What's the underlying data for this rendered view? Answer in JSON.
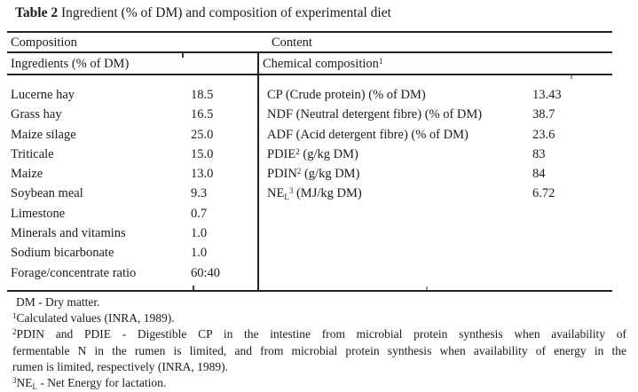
{
  "title": {
    "bold": "Table 2",
    "rest": " Ingredient (% of DM) and composition of experimental diet"
  },
  "table": {
    "header_row1": {
      "left": "Composition",
      "right": "Content"
    },
    "header_row2": {
      "left": "Ingredients (% of DM)",
      "right": "Chemical composition",
      "right_sup": "1"
    },
    "ingredients": [
      {
        "label": "Lucerne hay",
        "value": "18.5"
      },
      {
        "label": "Grass hay",
        "value": "16.5"
      },
      {
        "label": "Maize silage",
        "value": "25.0"
      },
      {
        "label": "Triticale",
        "value": "15.0"
      },
      {
        "label": "Maize",
        "value": "13.0"
      },
      {
        "label": "Soybean meal",
        "value": "9.3"
      },
      {
        "label": "Limestone",
        "value": "0.7"
      },
      {
        "label": "Minerals and vitamins",
        "value": "1.0"
      },
      {
        "label": "Sodium bicarbonate",
        "value": "1.0"
      },
      {
        "label": "Forage/concentrate ratio",
        "value": "60:40"
      }
    ],
    "chemical": [
      {
        "parts": [
          {
            "t": "CP (Crude protein) (% of DM)"
          }
        ],
        "value": "13.43"
      },
      {
        "parts": [
          {
            "t": "NDF (Neutral detergent fibre) (% of DM)"
          }
        ],
        "value": "38.7"
      },
      {
        "parts": [
          {
            "t": "ADF (Acid detergent fibre) (% of DM)"
          }
        ],
        "value": "23.6"
      },
      {
        "parts": [
          {
            "t": "PDIE"
          },
          {
            "sup": "2"
          },
          {
            "t": " (g/kg DM)"
          }
        ],
        "value": "83"
      },
      {
        "parts": [
          {
            "t": "PDIN"
          },
          {
            "sup": "2"
          },
          {
            "t": " (g/kg DM)"
          }
        ],
        "value": "84"
      },
      {
        "parts": [
          {
            "t": "NE"
          },
          {
            "sub": "L"
          },
          {
            "sup": "3"
          },
          {
            "t": " (MJ/kg DM)"
          }
        ],
        "value": "6.72"
      }
    ]
  },
  "footnotes": [
    {
      "lines": [
        {
          "parts": [
            {
              "t": "DM - Dry matter."
            }
          ]
        }
      ]
    },
    {
      "lines": [
        {
          "parts": [
            {
              "sup": "1"
            },
            {
              "t": "Calculated values (INRA, 1989)."
            }
          ]
        }
      ]
    },
    {
      "lines": [
        {
          "justify": true,
          "parts": [
            {
              "sup": "2"
            },
            {
              "t": "PDIN and PDIE - Digestible CP in the intestine from microbial protein synthesis when availability of"
            }
          ]
        },
        {
          "justify": true,
          "parts": [
            {
              "t": "fermentable N in the rumen is limited, and from microbial protein synthesis when availability of energy in the"
            }
          ]
        },
        {
          "parts": [
            {
              "t": "rumen is limited, respectively (INRA, 1989)."
            }
          ]
        }
      ]
    },
    {
      "lines": [
        {
          "parts": [
            {
              "sup": "3"
            },
            {
              "t": "NE"
            },
            {
              "sub": "L"
            },
            {
              "t": " - Net Energy for lactation."
            }
          ]
        }
      ]
    }
  ]
}
